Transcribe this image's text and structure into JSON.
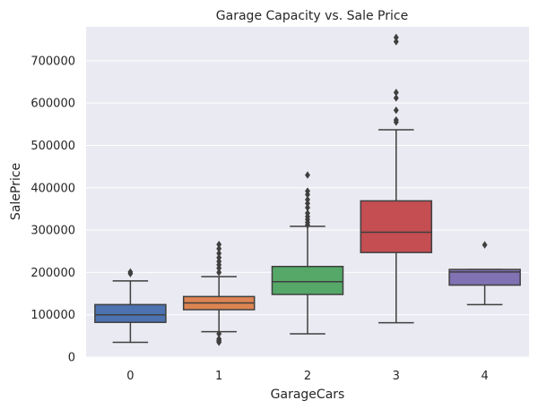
{
  "chart_data": {
    "type": "box",
    "title": "Garage Capacity vs. Sale Price",
    "xlabel": "GarageCars",
    "ylabel": "SalePrice",
    "ylim": [
      0,
      780000
    ],
    "yticks": [
      0,
      100000,
      200000,
      300000,
      400000,
      500000,
      600000,
      700000
    ],
    "grid": true,
    "categories": [
      "0",
      "1",
      "2",
      "3",
      "4"
    ],
    "boxes": [
      {
        "category": "0",
        "color": "#4c72b0",
        "whisker_low": 35000,
        "q1": 82000,
        "median": 100000,
        "q3": 124000,
        "whisker_high": 180000,
        "outliers": [
          197000,
          201000
        ]
      },
      {
        "category": "1",
        "color": "#dd8452",
        "whisker_low": 60000,
        "q1": 112000,
        "median": 128000,
        "q3": 143000,
        "whisker_high": 190000,
        "outliers": [
          35000,
          38000,
          40000,
          43000,
          55000,
          200000,
          210000,
          218000,
          226000,
          235000,
          245000,
          256000,
          266000
        ]
      },
      {
        "category": "2",
        "color": "#55a868",
        "whisker_low": 55000,
        "q1": 148000,
        "median": 178000,
        "q3": 214000,
        "whisker_high": 309000,
        "outliers": [
          312000,
          318000,
          325000,
          332000,
          340000,
          353000,
          363000,
          372000,
          384000,
          392000,
          430000
        ]
      },
      {
        "category": "3",
        "color": "#c44e52",
        "whisker_low": 81000,
        "q1": 247000,
        "median": 295000,
        "q3": 369000,
        "whisker_high": 537000,
        "outliers": [
          555000,
          560000,
          583000,
          612000,
          625000,
          745000,
          755000
        ]
      },
      {
        "category": "4",
        "color": "#8172b3",
        "whisker_low": 124000,
        "q1": 170000,
        "median": 201000,
        "q3": 207000,
        "whisker_high": 207000,
        "outliers": [
          265000
        ]
      }
    ]
  }
}
